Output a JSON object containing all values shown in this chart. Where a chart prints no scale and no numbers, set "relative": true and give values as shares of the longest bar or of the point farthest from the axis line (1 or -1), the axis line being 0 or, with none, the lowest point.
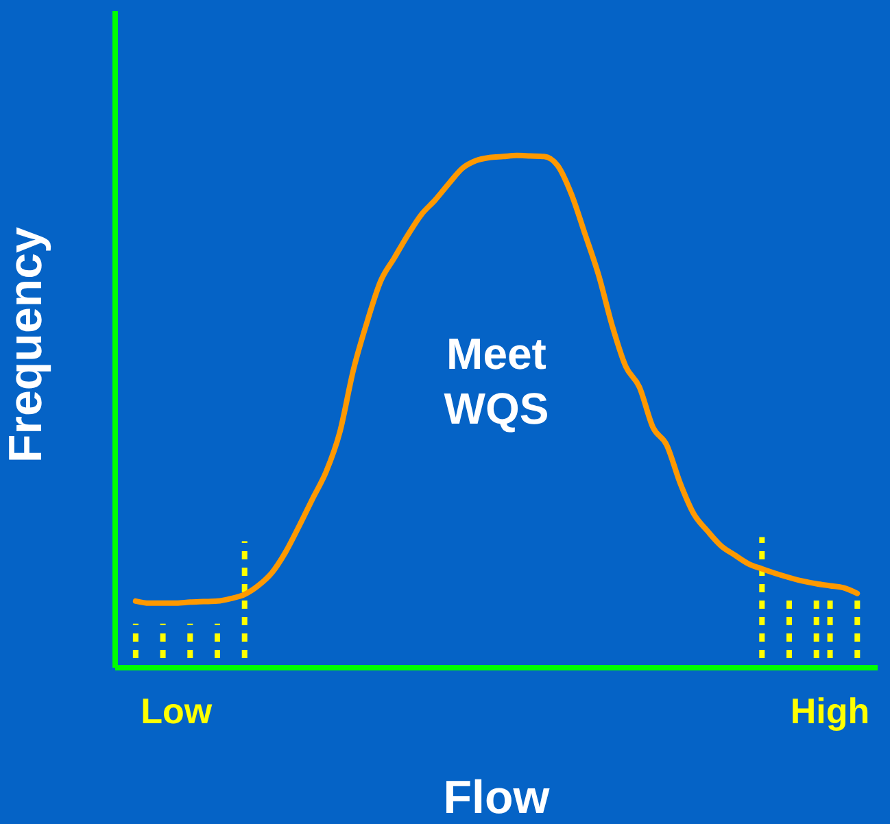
{
  "chart_data": {
    "type": "line",
    "relative": true,
    "xlabel": "Flow",
    "ylabel": "Frequency",
    "annotations": [
      "Meet WQS"
    ],
    "categories": [
      null,
      null,
      null,
      null,
      "Low",
      null,
      null,
      null,
      null,
      null,
      null,
      null,
      null,
      null,
      null,
      null,
      null,
      null,
      null,
      null,
      null,
      null,
      null,
      null,
      null,
      null,
      null,
      null,
      null,
      null,
      null,
      null,
      null,
      null,
      null,
      null,
      null,
      null,
      null,
      null,
      null,
      null,
      null,
      null,
      null,
      null,
      null,
      null,
      null,
      null,
      null,
      null,
      "High",
      null,
      null,
      null
    ],
    "series": [
      {
        "type": "bar",
        "color": "#ffff00",
        "line_style": "dotted",
        "values": [
          null,
          0.086,
          null,
          0.086,
          null,
          0.086,
          null,
          0.086,
          null,
          0.247,
          null,
          null,
          null,
          null,
          null,
          null,
          null,
          null,
          null,
          null,
          null,
          null,
          null,
          null,
          null,
          null,
          null,
          null,
          null,
          null,
          null,
          null,
          null,
          null,
          null,
          null,
          null,
          null,
          null,
          null,
          null,
          null,
          null,
          null,
          null,
          null,
          null,
          0.255,
          null,
          0.134,
          null,
          0.134,
          0.134,
          null,
          0.134,
          null
        ]
      },
      {
        "color": "#ff9900",
        "values": [
          null,
          0.13,
          0.126,
          0.126,
          0.126,
          0.128,
          0.129,
          0.13,
          0.135,
          0.143,
          0.16,
          0.185,
          0.225,
          0.276,
          0.33,
          0.383,
          0.46,
          0.582,
          0.675,
          0.755,
          0.8,
          0.845,
          0.885,
          0.913,
          0.945,
          0.975,
          0.99,
          0.996,
          0.998,
          1,
          0.999,
          0.998,
          0.98,
          0.925,
          0.847,
          0.767,
          0.668,
          0.588,
          0.548,
          0.469,
          0.435,
          0.36,
          0.3,
          0.267,
          0.238,
          0.22,
          0.203,
          0.193,
          0.184,
          0.176,
          0.169,
          0.164,
          0.16,
          0.156,
          0.145,
          null
        ]
      }
    ],
    "marker": "none"
  }
}
